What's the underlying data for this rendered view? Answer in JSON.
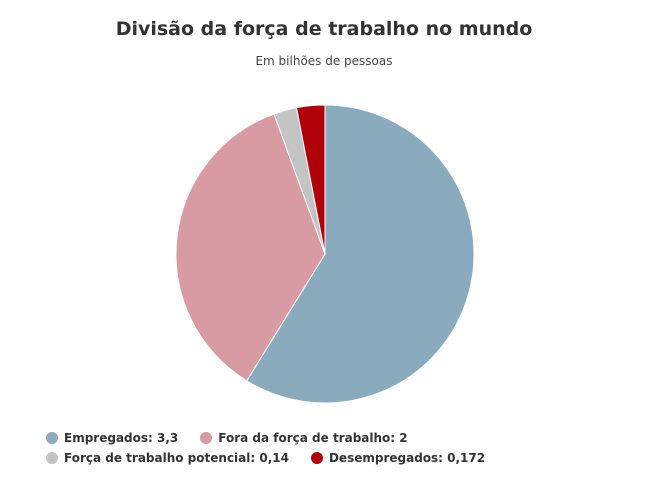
{
  "chart_data": {
    "type": "pie",
    "title": "Divisão da força de trabalho no mundo",
    "subtitle": "Em bilhões de pessoas",
    "categories": [
      "Empregados: 3,3",
      "Fora da força de trabalho: 2",
      "Força de trabalho potencial: 0,14",
      "Desempregados: 0,172"
    ],
    "values": [
      3.3,
      2,
      0.14,
      0.172
    ],
    "colors": [
      "#8aabbd",
      "#d99ba3",
      "#c4c4c4",
      "#b0000a"
    ]
  }
}
